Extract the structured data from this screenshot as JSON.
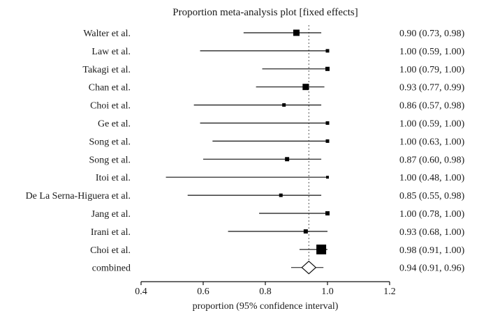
{
  "chart_data": {
    "type": "forest",
    "title": "Proportion meta-analysis plot [fixed effects]",
    "xlabel": "proportion (95% confidence interval)",
    "xlim": [
      0.4,
      1.2
    ],
    "xticks": [
      "0.4",
      "0.6",
      "0.8",
      "1.0",
      "1.2"
    ],
    "reference_line": 0.94,
    "studies": [
      {
        "name": "Walter et al.",
        "estimate": 0.9,
        "lower": 0.73,
        "upper": 0.98,
        "weight": 9,
        "label": "0.90 (0.73, 0.98)"
      },
      {
        "name": "Law et al.",
        "estimate": 1.0,
        "lower": 0.59,
        "upper": 1.0,
        "weight": 5,
        "label": "1.00 (0.59, 1.00)"
      },
      {
        "name": "Takagi et al.",
        "estimate": 1.0,
        "lower": 0.79,
        "upper": 1.0,
        "weight": 6,
        "label": "1.00 (0.79, 1.00)"
      },
      {
        "name": "Chan et al.",
        "estimate": 0.93,
        "lower": 0.77,
        "upper": 0.99,
        "weight": 9,
        "label": "0.93 (0.77, 0.99)"
      },
      {
        "name": "Choi et al.",
        "estimate": 0.86,
        "lower": 0.57,
        "upper": 0.98,
        "weight": 5,
        "label": "0.86 (0.57, 0.98)"
      },
      {
        "name": "Ge et al.",
        "estimate": 1.0,
        "lower": 0.59,
        "upper": 1.0,
        "weight": 5,
        "label": "1.00 (0.59, 1.00)"
      },
      {
        "name": "Song et al.",
        "estimate": 1.0,
        "lower": 0.63,
        "upper": 1.0,
        "weight": 5,
        "label": "1.00 (0.63, 1.00)"
      },
      {
        "name": "Song et al.",
        "estimate": 0.87,
        "lower": 0.6,
        "upper": 0.98,
        "weight": 6,
        "label": "0.87 (0.60, 0.98)"
      },
      {
        "name": "Itoi et al.",
        "estimate": 1.0,
        "lower": 0.48,
        "upper": 1.0,
        "weight": 4,
        "label": "1.00 (0.48, 1.00)"
      },
      {
        "name": "De La Serna-Higuera et al.",
        "estimate": 0.85,
        "lower": 0.55,
        "upper": 0.98,
        "weight": 5,
        "label": "0.85 (0.55, 0.98)"
      },
      {
        "name": "Jang et al.",
        "estimate": 1.0,
        "lower": 0.78,
        "upper": 1.0,
        "weight": 6,
        "label": "1.00 (0.78, 1.00)"
      },
      {
        "name": "Irani et al.",
        "estimate": 0.93,
        "lower": 0.68,
        "upper": 1.0,
        "weight": 6,
        "label": "0.93 (0.68, 1.00)"
      },
      {
        "name": "Choi et al.",
        "estimate": 0.98,
        "lower": 0.91,
        "upper": 1.0,
        "weight": 14,
        "label": "0.98 (0.91, 1.00)"
      }
    ],
    "combined": {
      "name": "combined",
      "estimate": 0.94,
      "lower": 0.91,
      "upper": 0.96,
      "label": "0.94 (0.91, 0.96)"
    }
  }
}
